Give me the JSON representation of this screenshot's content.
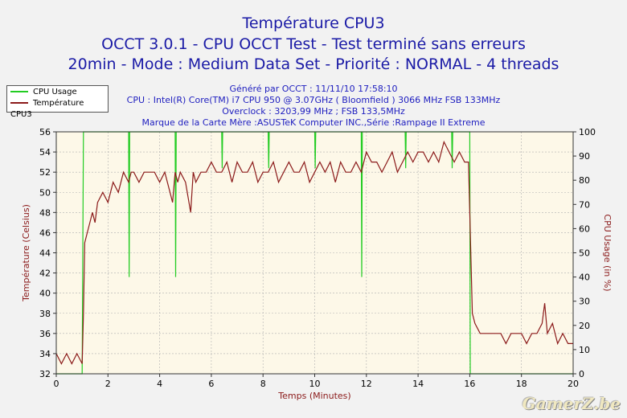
{
  "titles": [
    "Température CPU3",
    "OCCT 3.0.1 - CPU OCCT Test - Test terminé sans erreurs",
    "20min - Mode : Medium Data Set - Priorité : NORMAL - 4 threads"
  ],
  "info": [
    "Généré par OCCT : 11/11/10 17:58:10",
    "CPU : Intel(R) Core(TM) i7 CPU 950 @ 3.07GHz ( Bloomfield ) 3066 MHz FSB 133MHz",
    "Overclock : 3203,99 MHz ; FSB 133,5MHz",
    "Marque de la Carte Mère :ASUSTeK Computer INC.,Série :Rampage II Extreme"
  ],
  "legend": {
    "cpu_usage": "CPU Usage",
    "temp": "Température CPU3"
  },
  "watermark": "GamerZ.be",
  "chart_data": {
    "type": "line",
    "xlabel": "Temps (Minutes)",
    "ylabel_left": "Température (Celsius)",
    "ylabel_right": "CPU Usage (in %)",
    "xlim": [
      0,
      20
    ],
    "ylim_left": [
      32,
      56
    ],
    "ylim_right": [
      0,
      100
    ],
    "x_ticks": [
      "0",
      "2",
      "4",
      "6",
      "8",
      "10",
      "12",
      "14",
      "16",
      "18",
      "20"
    ],
    "y_left_ticks": [
      "32",
      "34",
      "36",
      "38",
      "40",
      "42",
      "44",
      "46",
      "48",
      "50",
      "52",
      "54",
      "56"
    ],
    "y_right_ticks": [
      "0",
      "10",
      "20",
      "30",
      "40",
      "50",
      "60",
      "70",
      "80",
      "90",
      "100"
    ],
    "grid": true,
    "legend_position": "top-left",
    "colors": {
      "cpu_usage": "#22cc22",
      "temp": "#8b1a1a",
      "plot_bg": "#fdf8e8",
      "grid": "#b0b0b0"
    },
    "series": [
      {
        "name": "CPU Usage",
        "axis": "right",
        "x": [
          0,
          1.0,
          1.05,
          2.8,
          2.82,
          2.84,
          4.6,
          4.62,
          4.64,
          6.4,
          6.42,
          6.44,
          8.2,
          8.22,
          8.24,
          10.0,
          10.02,
          10.04,
          11.8,
          11.82,
          11.84,
          13.5,
          13.52,
          13.54,
          15.3,
          15.32,
          15.34,
          16.0,
          16.02,
          16.04,
          20
        ],
        "y": [
          0,
          0,
          100,
          100,
          40,
          100,
          100,
          40,
          100,
          100,
          85,
          100,
          100,
          85,
          100,
          100,
          85,
          100,
          100,
          40,
          100,
          100,
          85,
          100,
          100,
          85,
          100,
          100,
          0,
          0,
          0
        ]
      },
      {
        "name": "Température CPU3",
        "axis": "left",
        "x": [
          0,
          0.2,
          0.4,
          0.6,
          0.8,
          1.0,
          1.05,
          1.1,
          1.2,
          1.3,
          1.4,
          1.5,
          1.6,
          1.8,
          2.0,
          2.2,
          2.4,
          2.6,
          2.8,
          2.9,
          3.0,
          3.2,
          3.4,
          3.6,
          3.8,
          4.0,
          4.2,
          4.4,
          4.5,
          4.6,
          4.7,
          4.8,
          5.0,
          5.2,
          5.3,
          5.4,
          5.6,
          5.8,
          6.0,
          6.2,
          6.4,
          6.6,
          6.8,
          7.0,
          7.2,
          7.4,
          7.6,
          7.8,
          8.0,
          8.2,
          8.4,
          8.6,
          8.8,
          9.0,
          9.2,
          9.4,
          9.6,
          9.8,
          10.0,
          10.2,
          10.4,
          10.6,
          10.8,
          11.0,
          11.2,
          11.4,
          11.6,
          11.8,
          12.0,
          12.2,
          12.4,
          12.6,
          12.8,
          13.0,
          13.2,
          13.4,
          13.6,
          13.8,
          14.0,
          14.2,
          14.4,
          14.6,
          14.8,
          15.0,
          15.2,
          15.4,
          15.6,
          15.8,
          15.95,
          16.05,
          16.1,
          16.2,
          16.4,
          16.6,
          16.8,
          17.0,
          17.2,
          17.4,
          17.6,
          17.8,
          18.0,
          18.2,
          18.4,
          18.6,
          18.8,
          18.9,
          19.0,
          19.2,
          19.4,
          19.6,
          19.8,
          20.0
        ],
        "y": [
          34,
          33,
          34,
          33,
          34,
          33,
          38,
          45,
          46,
          47,
          48,
          47,
          49,
          50,
          49,
          51,
          50,
          52,
          51,
          52,
          52,
          51,
          52,
          52,
          52,
          51,
          52,
          50,
          49,
          52,
          51,
          52,
          51,
          48,
          52,
          51,
          52,
          52,
          53,
          52,
          52,
          53,
          51,
          53,
          52,
          52,
          53,
          51,
          52,
          52,
          53,
          51,
          52,
          53,
          52,
          52,
          53,
          51,
          52,
          53,
          52,
          53,
          51,
          53,
          52,
          52,
          53,
          52,
          54,
          53,
          53,
          52,
          53,
          54,
          52,
          53,
          54,
          53,
          54,
          54,
          53,
          54,
          53,
          55,
          54,
          53,
          54,
          53,
          53,
          43,
          38,
          37,
          36,
          36,
          36,
          36,
          36,
          35,
          36,
          36,
          36,
          35,
          36,
          36,
          37,
          39,
          36,
          37,
          35,
          36,
          35,
          35
        ]
      }
    ]
  }
}
